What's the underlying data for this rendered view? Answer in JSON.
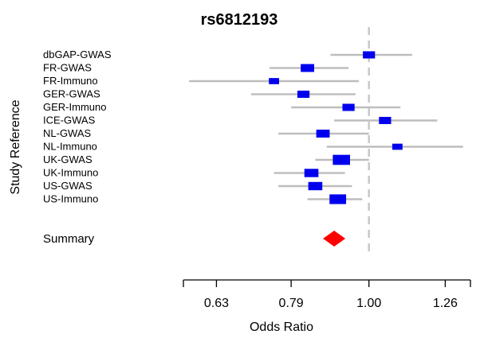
{
  "chart_data": {
    "type": "forest",
    "title": "rs6812193",
    "ylabel": "Study Reference",
    "xlabel": "Odds Ratio",
    "x_scale": "log",
    "xlim": [
      0.57,
      1.36
    ],
    "reference_line": 1.0,
    "x_ticks": [
      {
        "value": 0.63,
        "label": "0.63"
      },
      {
        "value": 0.79,
        "label": "0.79"
      },
      {
        "value": 1.0,
        "label": "1.00"
      },
      {
        "value": 1.26,
        "label": "1.26"
      }
    ],
    "studies": [
      {
        "name": "dbGAP-GWAS",
        "or": 1.0,
        "ci": [
          0.89,
          1.14
        ],
        "weight": 0.45
      },
      {
        "name": "FR-GWAS",
        "or": 0.83,
        "ci": [
          0.74,
          0.94
        ],
        "weight": 0.55
      },
      {
        "name": "FR-Immuno",
        "or": 0.75,
        "ci": [
          0.58,
          0.97
        ],
        "weight": 0.3
      },
      {
        "name": "GER-GWAS",
        "or": 0.82,
        "ci": [
          0.7,
          0.96
        ],
        "weight": 0.45
      },
      {
        "name": "GER-Immuno",
        "or": 0.94,
        "ci": [
          0.79,
          1.1
        ],
        "weight": 0.45
      },
      {
        "name": "ICE-GWAS",
        "or": 1.05,
        "ci": [
          0.9,
          1.23
        ],
        "weight": 0.45
      },
      {
        "name": "NL-GWAS",
        "or": 0.87,
        "ci": [
          0.76,
          1.0
        ],
        "weight": 0.55
      },
      {
        "name": "NL-Immuno",
        "or": 1.09,
        "ci": [
          0.88,
          1.33
        ],
        "weight": 0.3
      },
      {
        "name": "UK-GWAS",
        "or": 0.92,
        "ci": [
          0.85,
          1.0
        ],
        "weight": 0.85
      },
      {
        "name": "UK-Immuno",
        "or": 0.84,
        "ci": [
          0.75,
          0.93
        ],
        "weight": 0.6
      },
      {
        "name": "US-GWAS",
        "or": 0.85,
        "ci": [
          0.76,
          0.95
        ],
        "weight": 0.6
      },
      {
        "name": "US-Immuno",
        "or": 0.91,
        "ci": [
          0.83,
          0.98
        ],
        "weight": 0.8
      }
    ],
    "summary": {
      "name": "Summary",
      "or": 0.9,
      "ci": [
        0.87,
        0.93
      ]
    },
    "colors": {
      "box": "#0000ee",
      "summary": "#ff0000",
      "ci_line": "#bebebe",
      "reference_line": "#c8c8c8"
    }
  }
}
